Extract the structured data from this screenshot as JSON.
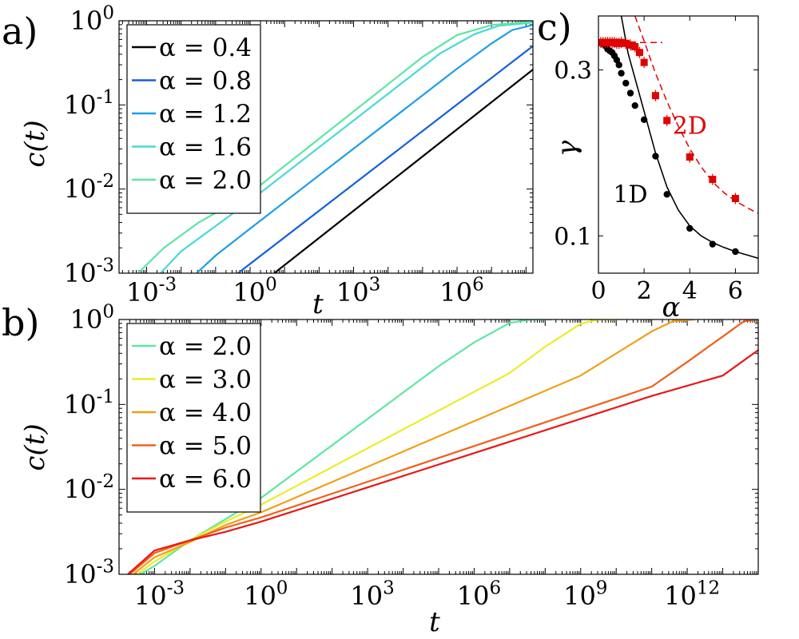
{
  "panel_labels": {
    "a": "a)",
    "b": "b)",
    "c": "c)"
  },
  "colors": {
    "a0.4": "#000000",
    "a0.8": "#1260d8",
    "a1.2": "#1e9ee8",
    "a1.6": "#4ad8d8",
    "a2.0": "#5ee6a4",
    "a3.0": "#ecec28",
    "a4.0": "#f0a018",
    "a5.0": "#f06018",
    "a6.0": "#e81818",
    "black": "#000000",
    "red": "#e00000",
    "gray": "#b8b8b8"
  },
  "chart_data": [
    {
      "id": "a",
      "type": "line",
      "scale": "loglog",
      "xlabel": "t",
      "ylabel": "c(t)",
      "xlim": [
        -3.8,
        8.2
      ],
      "ylim": [
        -3,
        0
      ],
      "xticks": [
        {
          "exp": -3,
          "label": "10",
          "sup": "-3"
        },
        {
          "exp": 0,
          "label": "10",
          "sup": "0"
        },
        {
          "exp": 3,
          "label": "10",
          "sup": "3"
        },
        {
          "exp": 6,
          "label": "10",
          "sup": "6"
        }
      ],
      "yticks": [
        {
          "exp": -3,
          "label": "10",
          "sup": "-3"
        },
        {
          "exp": -2,
          "label": "10",
          "sup": "-2"
        },
        {
          "exp": -1,
          "label": "10",
          "sup": "-1"
        },
        {
          "exp": 0,
          "label": "10",
          "sup": "0"
        }
      ],
      "legend": [
        "α = 0.4",
        "α = 0.8",
        "α = 1.2",
        "α = 1.6",
        "α = 2.0"
      ],
      "legend_position": "top-left",
      "series": [
        {
          "name": "α = 0.4",
          "color_key": "a0.4",
          "points": [
            [
              0.7,
              -3.0
            ],
            [
              8.2,
              -0.58
            ]
          ]
        },
        {
          "name": "α = 0.8",
          "color_key": "a0.8",
          "points": [
            [
              -0.35,
              -3.0
            ],
            [
              8.2,
              -0.3
            ]
          ]
        },
        {
          "name": "α = 1.2",
          "color_key": "a1.2",
          "points": [
            [
              -1.55,
              -3.0
            ],
            [
              -1.0,
              -2.79
            ],
            [
              0.0,
              -2.47
            ],
            [
              6.0,
              -0.57
            ],
            [
              7.0,
              -0.27
            ],
            [
              7.6,
              -0.11
            ],
            [
              8.2,
              -0.05
            ]
          ]
        },
        {
          "name": "α = 1.6",
          "color_key": "a1.6",
          "points": [
            [
              -2.6,
              -3.0
            ],
            [
              -2.0,
              -2.74
            ],
            [
              -1.0,
              -2.44
            ],
            [
              0.0,
              -2.14
            ],
            [
              5.5,
              -0.39
            ],
            [
              6.5,
              -0.16
            ],
            [
              7.2,
              -0.06
            ],
            [
              8.2,
              -0.02
            ]
          ]
        },
        {
          "name": "α = 2.0",
          "color_key": "a2.0",
          "points": [
            [
              -3.25,
              -3.0
            ],
            [
              -2.5,
              -2.7
            ],
            [
              -1.5,
              -2.4
            ],
            [
              0.0,
              -2.05
            ],
            [
              5.0,
              -0.43
            ],
            [
              6.0,
              -0.17
            ],
            [
              7.0,
              -0.05
            ],
            [
              8.2,
              -0.01
            ]
          ]
        }
      ]
    },
    {
      "id": "b",
      "type": "line",
      "scale": "loglog",
      "xlabel": "t",
      "ylabel": "c(t)",
      "xlim": [
        -4.0,
        14.0
      ],
      "ylim": [
        -3,
        0
      ],
      "xticks": [
        {
          "exp": -3,
          "label": "10",
          "sup": "-3"
        },
        {
          "exp": 0,
          "label": "10",
          "sup": "0"
        },
        {
          "exp": 3,
          "label": "10",
          "sup": "3"
        },
        {
          "exp": 6,
          "label": "10",
          "sup": "6"
        },
        {
          "exp": 9,
          "label": "10",
          "sup": "9"
        },
        {
          "exp": 12,
          "label": "10",
          "sup": "12"
        }
      ],
      "yticks": [
        {
          "exp": -3,
          "label": "10",
          "sup": "-3"
        },
        {
          "exp": -2,
          "label": "10",
          "sup": "-2"
        },
        {
          "exp": -1,
          "label": "10",
          "sup": "-1"
        },
        {
          "exp": 0,
          "label": "10",
          "sup": "0"
        }
      ],
      "legend": [
        "α = 2.0",
        "α = 3.0",
        "α = 4.0",
        "α = 5.0",
        "α = 6.0"
      ],
      "legend_position": "top-left",
      "series": [
        {
          "name": "α = 2.0",
          "color_key": "a2.0",
          "points": [
            [
              -3.4,
              -3.0
            ],
            [
              -3.0,
              -2.9
            ],
            [
              -2.0,
              -2.6
            ],
            [
              -1.0,
              -2.35
            ],
            [
              0.0,
              -2.1
            ],
            [
              5.0,
              -0.55
            ],
            [
              6.0,
              -0.27
            ],
            [
              7.0,
              -0.04
            ],
            [
              7.6,
              0.0
            ],
            [
              8.2,
              0.0
            ]
          ]
        },
        {
          "name": "α = 3.0",
          "color_key": "a3.0",
          "points": [
            [
              -3.5,
              -3.0
            ],
            [
              -3.0,
              -2.85
            ],
            [
              -2.0,
              -2.6
            ],
            [
              -1.0,
              -2.38
            ],
            [
              0.0,
              -2.18
            ],
            [
              7.0,
              -0.63
            ],
            [
              8.0,
              -0.32
            ],
            [
              9.0,
              -0.05
            ],
            [
              9.5,
              0.0
            ],
            [
              10.0,
              0.0
            ]
          ]
        },
        {
          "name": "α = 4.0",
          "color_key": "a4.0",
          "points": [
            [
              -3.6,
              -3.0
            ],
            [
              -3.0,
              -2.8
            ],
            [
              -2.0,
              -2.62
            ],
            [
              -1.0,
              -2.42
            ],
            [
              0.0,
              -2.27
            ],
            [
              9.0,
              -0.66
            ],
            [
              10.0,
              -0.4
            ],
            [
              11.0,
              -0.14
            ],
            [
              11.6,
              -0.02
            ],
            [
              12.2,
              0.0
            ]
          ]
        },
        {
          "name": "α = 5.0",
          "color_key": "a5.0",
          "points": [
            [
              -3.7,
              -3.0
            ],
            [
              -3.0,
              -2.75
            ],
            [
              -2.0,
              -2.6
            ],
            [
              -1.0,
              -2.45
            ],
            [
              0.0,
              -2.33
            ],
            [
              11.0,
              -0.79
            ],
            [
              12.0,
              -0.5
            ],
            [
              13.0,
              -0.2
            ],
            [
              13.6,
              -0.02
            ],
            [
              14.0,
              0.0
            ]
          ]
        },
        {
          "name": "α = 6.0",
          "color_key": "a6.0",
          "points": [
            [
              -3.75,
              -3.0
            ],
            [
              -3.0,
              -2.72
            ],
            [
              -2.0,
              -2.6
            ],
            [
              -1.0,
              -2.5
            ],
            [
              0.0,
              -2.38
            ],
            [
              11.0,
              -0.9
            ],
            [
              13.0,
              -0.66
            ],
            [
              14.0,
              -0.36
            ]
          ]
        }
      ]
    },
    {
      "id": "c",
      "type": "scatter",
      "xlabel": "α",
      "ylabel": "γ",
      "xlim": [
        0,
        7
      ],
      "ylim": [
        0.055,
        0.365
      ],
      "xticks": [
        0,
        2,
        4,
        6
      ],
      "yticks": [
        {
          "value": 0.1,
          "label": "0.1"
        },
        {
          "value": 0.3,
          "label": "0.3"
        }
      ],
      "annotations": [
        {
          "text": "1D",
          "x": 1.4,
          "y": 0.14,
          "color_key": "black"
        },
        {
          "text": "2D",
          "x": 4.0,
          "y": 0.223,
          "color_key": "red"
        }
      ],
      "series": [
        {
          "name": "1D",
          "color_key": "black",
          "marker": "circle",
          "points": [
            [
              0.1,
              0.333
            ],
            [
              0.2,
              0.331
            ],
            [
              0.3,
              0.329
            ],
            [
              0.4,
              0.325
            ],
            [
              0.5,
              0.323
            ],
            [
              0.6,
              0.321
            ],
            [
              0.7,
              0.317
            ],
            [
              0.8,
              0.312
            ],
            [
              0.9,
              0.306
            ],
            [
              1.0,
              0.296
            ],
            [
              1.2,
              0.284
            ],
            [
              1.4,
              0.272
            ],
            [
              1.6,
              0.257
            ],
            [
              2.0,
              0.24
            ],
            [
              2.5,
              0.196
            ],
            [
              3.0,
              0.15
            ],
            [
              4.0,
              0.109
            ],
            [
              5.0,
              0.09
            ],
            [
              6.0,
              0.081
            ]
          ],
          "fit": [
            [
              1.0,
              0.365
            ],
            [
              1.3,
              0.32
            ],
            [
              1.7,
              0.28
            ],
            [
              2.1,
              0.24
            ],
            [
              2.5,
              0.2
            ],
            [
              3.0,
              0.159
            ],
            [
              3.5,
              0.131
            ],
            [
              4.0,
              0.112
            ],
            [
              4.5,
              0.1
            ],
            [
              5.0,
              0.092
            ],
            [
              5.5,
              0.086
            ],
            [
              6.0,
              0.081
            ],
            [
              6.5,
              0.077
            ],
            [
              7.0,
              0.073
            ]
          ]
        },
        {
          "name": "2D",
          "color_key": "red",
          "marker": "square",
          "points": [
            [
              0.1,
              0.333
            ],
            [
              0.2,
              0.333
            ],
            [
              0.3,
              0.333
            ],
            [
              0.4,
              0.333
            ],
            [
              0.5,
              0.333
            ],
            [
              0.6,
              0.333
            ],
            [
              0.7,
              0.333
            ],
            [
              0.8,
              0.332
            ],
            [
              0.9,
              0.332
            ],
            [
              1.0,
              0.333
            ],
            [
              1.2,
              0.332
            ],
            [
              1.4,
              0.33
            ],
            [
              1.6,
              0.328
            ],
            [
              1.8,
              0.321
            ],
            [
              2.0,
              0.309
            ],
            [
              2.5,
              0.269
            ],
            [
              3.0,
              0.239
            ],
            [
              4.0,
              0.195
            ],
            [
              5.0,
              0.168
            ],
            [
              6.0,
              0.145
            ]
          ],
          "fit": [
            [
              1.6,
              0.365
            ],
            [
              2.0,
              0.335
            ],
            [
              2.5,
              0.296
            ],
            [
              3.0,
              0.262
            ],
            [
              3.5,
              0.232
            ],
            [
              4.0,
              0.205
            ],
            [
              4.5,
              0.183
            ],
            [
              5.0,
              0.165
            ],
            [
              5.5,
              0.152
            ],
            [
              6.0,
              0.142
            ],
            [
              6.5,
              0.134
            ],
            [
              7.0,
              0.127
            ]
          ],
          "plateau": [
            [
              0,
              0.333
            ],
            [
              2.8,
              0.333
            ]
          ]
        }
      ]
    }
  ]
}
